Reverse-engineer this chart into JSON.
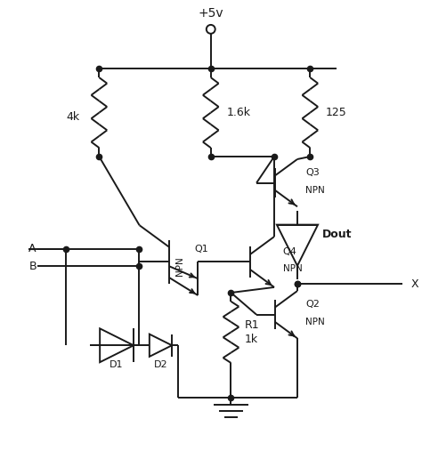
{
  "bg_color": "#ffffff",
  "line_color": "#1a1a1a",
  "lw": 1.4,
  "labels": {
    "vcc": "+5v",
    "r4k": "4k",
    "r16k": "1.6k",
    "r125": "125",
    "r1k_label": "R1",
    "r1k_val": "1k",
    "q1": "Q1",
    "q1t": "NPN",
    "q2": "Q2",
    "q2t": "NPN",
    "q3": "Q3",
    "q3t": "NPN",
    "q4": "Q4",
    "q4t": "NPN",
    "d1": "D1",
    "d2": "D2",
    "dout": "Dout",
    "a": "A",
    "b": "B",
    "x": "X"
  }
}
